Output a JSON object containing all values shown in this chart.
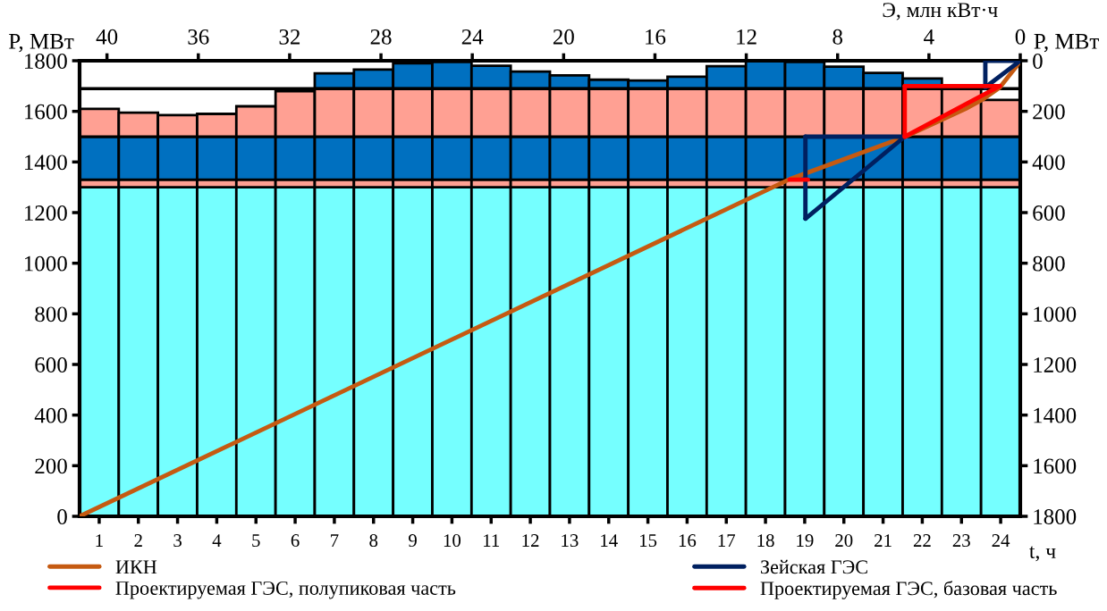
{
  "chart_data": [
    {
      "type": "bar",
      "stacked": true,
      "xlabel": "t, ч",
      "ylabel": "P, МВт",
      "categories": [
        "1",
        "2",
        "3",
        "4",
        "5",
        "6",
        "7",
        "8",
        "9",
        "10",
        "11",
        "12",
        "13",
        "14",
        "15",
        "16",
        "17",
        "18",
        "19",
        "20",
        "21",
        "22",
        "23",
        "24"
      ],
      "ylim": [
        0,
        1800
      ],
      "yticks": [
        0,
        200,
        400,
        600,
        800,
        1000,
        1200,
        1400,
        1600,
        1800
      ],
      "grid": false,
      "ref_lines": [
        {
          "axis": "y",
          "value": 1690,
          "label": null,
          "color": "#000000"
        }
      ],
      "series": [
        {
          "color": "#75ffff",
          "values": [
            1300,
            1300,
            1300,
            1300,
            1300,
            1300,
            1300,
            1300,
            1300,
            1300,
            1300,
            1300,
            1300,
            1300,
            1300,
            1300,
            1300,
            1300,
            1300,
            1300,
            1300,
            1300,
            1300,
            1300
          ]
        },
        {
          "color": "#ffa093",
          "values": [
            30,
            30,
            30,
            30,
            30,
            30,
            30,
            30,
            30,
            30,
            30,
            30,
            30,
            30,
            30,
            30,
            30,
            30,
            30,
            30,
            30,
            30,
            30,
            30
          ]
        },
        {
          "color": "#0070c0",
          "values": [
            170,
            170,
            170,
            170,
            170,
            170,
            170,
            170,
            170,
            170,
            170,
            170,
            170,
            170,
            170,
            170,
            170,
            170,
            170,
            170,
            170,
            170,
            170,
            170
          ]
        },
        {
          "color": "#ffa093",
          "values": [
            110,
            95,
            85,
            90,
            120,
            180,
            190,
            190,
            190,
            190,
            190,
            190,
            190,
            190,
            190,
            190,
            190,
            190,
            190,
            190,
            190,
            190,
            190,
            145
          ]
        },
        {
          "color": "#0070c0",
          "values": [
            null,
            null,
            null,
            null,
            null,
            null,
            60,
            75,
            100,
            105,
            90,
            67,
            52,
            35,
            32,
            47,
            88,
            110,
            105,
            87,
            62,
            40,
            5,
            null
          ]
        }
      ]
    },
    {
      "type": "line",
      "xlabel": "Э, млн кВт·ч",
      "ylabel": "P, МВт",
      "xlim": [
        41.2,
        0
      ],
      "xticks": [
        0,
        4,
        8,
        12,
        16,
        20,
        24,
        28,
        32,
        36,
        40
      ],
      "ylim": [
        1800,
        0
      ],
      "yticks": [
        0,
        200,
        400,
        600,
        800,
        1000,
        1200,
        1400,
        1600,
        1800
      ],
      "grid": false,
      "legend": "bottom",
      "series": [
        {
          "name": "ИКН",
          "color": "#c55a11",
          "x": [
            0,
            0.15,
            0.5,
            0.9,
            1.6,
            2.4,
            5.06,
            10.1,
            41.2
          ],
          "values": [
            0,
            20,
            60,
            106,
            150,
            190,
            301,
            468,
            1800
          ]
        },
        {
          "name": "Зейская ГЭС",
          "color": "#002060",
          "x": [
            0,
            1.53
          ],
          "values": [
            0,
            0
          ]
        },
        {
          "color": "#002060",
          "x": [
            1.53,
            1.53
          ],
          "values": [
            0,
            105
          ]
        },
        {
          "color": "#002060",
          "x": [
            0,
            1.53
          ],
          "values": [
            0,
            105
          ]
        },
        {
          "color": "#002060",
          "x": [
            5.06,
            9.41
          ],
          "values": [
            300,
            300
          ]
        },
        {
          "color": "#002060",
          "x": [
            9.41,
            9.41
          ],
          "values": [
            300,
            624
          ]
        },
        {
          "color": "#002060",
          "x": [
            5.06,
            9.41
          ],
          "values": [
            300,
            624
          ]
        },
        {
          "name": "Проектируемая ГЭС, полупиковая часть",
          "color": "#ff0000",
          "x": [
            0.9,
            5.06
          ],
          "values": [
            100,
            100
          ]
        },
        {
          "color": "#ff0000",
          "x": [
            5.06,
            5.06
          ],
          "values": [
            100,
            300
          ]
        },
        {
          "color": "#ff0000",
          "x": [
            0.9,
            5.06
          ],
          "values": [
            100,
            300
          ]
        },
        {
          "name": "Проектируемая ГЭС, базовая часть",
          "color": "#ff0000",
          "x": [
            9.3,
            10.1
          ],
          "values": [
            470,
            470
          ]
        }
      ]
    }
  ]
}
